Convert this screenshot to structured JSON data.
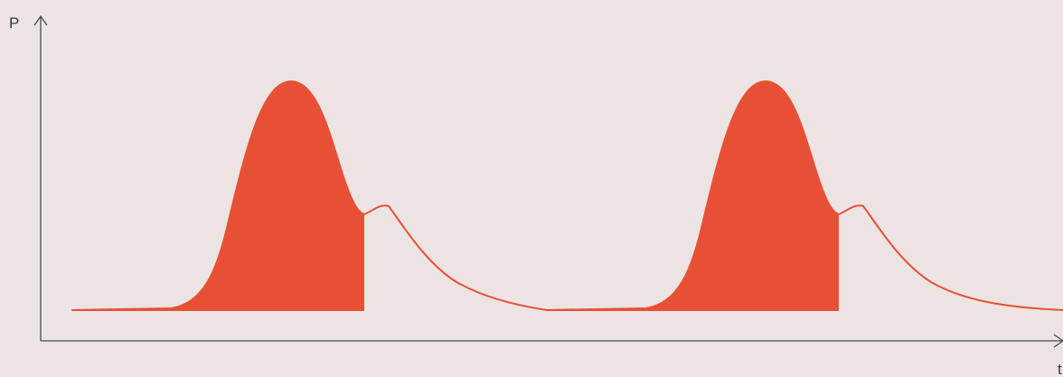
{
  "axes": {
    "y_label": "P",
    "x_label": "t"
  },
  "colors": {
    "background": "#ebe4e3",
    "axis": "#4a4a4a",
    "waveform": "#e85035"
  }
}
